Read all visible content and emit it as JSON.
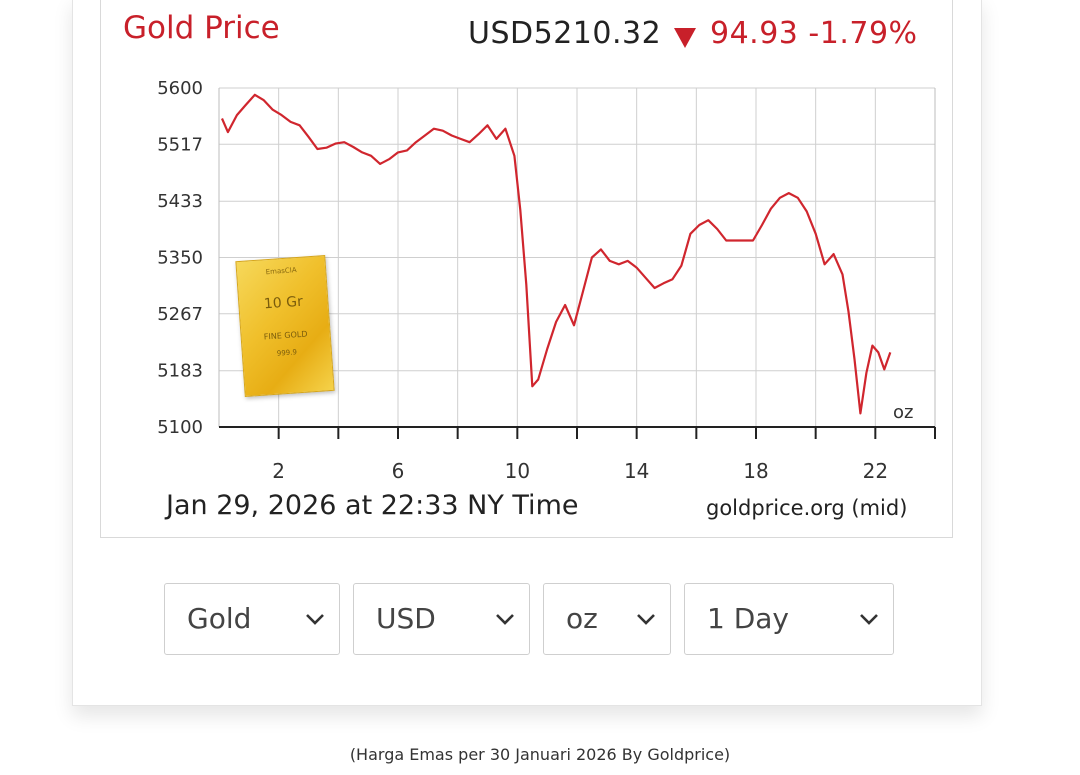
{
  "header": {
    "title": "Gold Price",
    "price": "USD5210.32",
    "change": "94.93 -1.79%",
    "direction_icon": "triangle-down-icon",
    "down_color": "#c8202a"
  },
  "chart_data": {
    "type": "line",
    "title": "Gold Price",
    "xlabel": "",
    "ylabel": "",
    "unit": "oz",
    "xlim": [
      0,
      24
    ],
    "ylim": [
      5100,
      5600
    ],
    "y_ticks": [
      "5600",
      "5517",
      "5433",
      "5350",
      "5267",
      "5183",
      "5100"
    ],
    "y_tick_values": [
      5600,
      5517,
      5433,
      5350,
      5267,
      5183,
      5100
    ],
    "x_ticks": [
      "2",
      "6",
      "10",
      "14",
      "18",
      "22"
    ],
    "x_tick_values": [
      2,
      6,
      10,
      14,
      18,
      22
    ],
    "grid": true,
    "line_color": "#d0262e",
    "series": [
      {
        "x": [
          0.1,
          0.3,
          0.6,
          0.9,
          1.2,
          1.5,
          1.8,
          2.1,
          2.4,
          2.7,
          3.0,
          3.3,
          3.6,
          3.9,
          4.2,
          4.5,
          4.8,
          5.1,
          5.4,
          5.7,
          6.0,
          6.3,
          6.6,
          6.9,
          7.2,
          7.5,
          7.8,
          8.1,
          8.4,
          8.7,
          9.0,
          9.3,
          9.6,
          9.9,
          10.1,
          10.3,
          10.5,
          10.7,
          11.0,
          11.3,
          11.6,
          11.9,
          12.2,
          12.5,
          12.8,
          13.1,
          13.4,
          13.7,
          14.0,
          14.3,
          14.6,
          14.9,
          15.2,
          15.5,
          15.8,
          16.1,
          16.4,
          16.7,
          17.0,
          17.3,
          17.6,
          17.9,
          18.2,
          18.5,
          18.8,
          19.1,
          19.4,
          19.7,
          20.0,
          20.3,
          20.6,
          20.9,
          21.1,
          21.3,
          21.5,
          21.7,
          21.9,
          22.1,
          22.3,
          22.5
        ],
        "y": [
          5555,
          5535,
          5560,
          5575,
          5590,
          5582,
          5568,
          5560,
          5550,
          5545,
          5528,
          5510,
          5512,
          5518,
          5520,
          5513,
          5505,
          5500,
          5488,
          5495,
          5505,
          5508,
          5520,
          5530,
          5540,
          5537,
          5530,
          5525,
          5520,
          5532,
          5545,
          5525,
          5540,
          5500,
          5420,
          5310,
          5160,
          5170,
          5215,
          5255,
          5280,
          5250,
          5300,
          5350,
          5362,
          5345,
          5340,
          5345,
          5335,
          5320,
          5305,
          5312,
          5318,
          5338,
          5385,
          5398,
          5405,
          5392,
          5375,
          5375,
          5375,
          5375,
          5398,
          5422,
          5438,
          5445,
          5438,
          5418,
          5385,
          5340,
          5355,
          5325,
          5270,
          5200,
          5120,
          5180,
          5220,
          5210,
          5185,
          5210
        ]
      }
    ]
  },
  "footer": {
    "timestamp": "Jan 29, 2026 at 22:33 NY Time",
    "source": "goldprice.org (mid)"
  },
  "gold_bar": {
    "brand": "EmasCIA",
    "weight": "10 Gr",
    "fine": "FINE GOLD",
    "purity": "999.9"
  },
  "controls": {
    "metal": "Gold",
    "currency": "USD",
    "unit": "oz",
    "period": "1 Day"
  },
  "caption": "(Harga Emas per 30 Januari 2026 By Goldprice)"
}
